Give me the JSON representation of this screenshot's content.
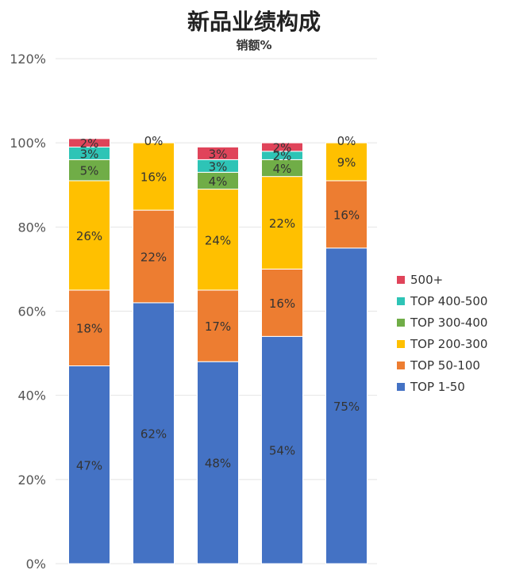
{
  "chart_data": {
    "type": "bar",
    "stacked": true,
    "title": "新品业绩构成",
    "subtitle": "销额%",
    "xlabel": "",
    "ylabel": "",
    "ylim": [
      0,
      120
    ],
    "yticks": [
      "0%",
      "20%",
      "40%",
      "60%",
      "80%",
      "100%",
      "120%"
    ],
    "grid": true,
    "legend_position": "right",
    "categories": [
      "",
      "",
      "",
      "",
      ""
    ],
    "series": [
      {
        "name": "TOP 1-50",
        "color": "#4472C4",
        "values": [
          47,
          62,
          48,
          54,
          75
        ],
        "labels": [
          "47%",
          "62%",
          "48%",
          "54%",
          "75%"
        ]
      },
      {
        "name": "TOP 50-100",
        "color": "#ED7D31",
        "values": [
          18,
          22,
          17,
          16,
          16
        ],
        "labels": [
          "18%",
          "22%",
          "17%",
          "16%",
          "16%"
        ]
      },
      {
        "name": "TOP 200-300",
        "color": "#FFC000",
        "values": [
          26,
          16,
          24,
          22,
          9
        ],
        "labels": [
          "26%",
          "16%",
          "24%",
          "22%",
          "9%"
        ]
      },
      {
        "name": "TOP 300-400",
        "color": "#70AD47",
        "values": [
          5,
          0,
          4,
          4,
          0
        ],
        "labels": [
          "5%",
          "",
          "4%",
          "4%",
          ""
        ]
      },
      {
        "name": "TOP 400-500",
        "color": "#2EC4B6",
        "values": [
          3,
          0,
          3,
          2,
          0
        ],
        "labels": [
          "3%",
          "",
          "3%",
          "2%",
          ""
        ]
      },
      {
        "name": "500+",
        "color": "#E0445A",
        "values": [
          2,
          0,
          3,
          2,
          0
        ],
        "labels": [
          "2%",
          "0%",
          "3%",
          "2%",
          "0%"
        ]
      }
    ],
    "legend_order": [
      "500+",
      "TOP 400-500",
      "TOP 300-400",
      "TOP 200-300",
      "TOP 50-100",
      "TOP 1-50"
    ]
  }
}
